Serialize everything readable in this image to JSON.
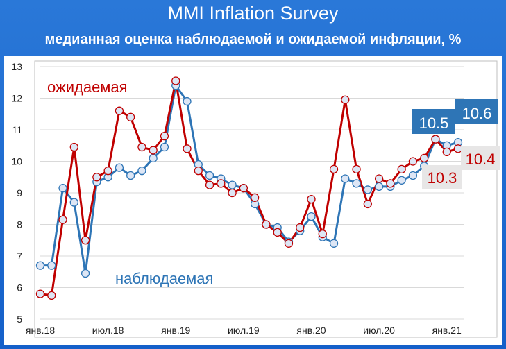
{
  "header": {
    "title": "MMI Inflation Survey",
    "subtitle": "медианная оценка наблюдаемой и ожидаемой инфляции, %"
  },
  "colors": {
    "background": "#1f6fd1",
    "expected": "#c00000",
    "observed": "#2e75b6",
    "marker_fill": "#dde6f5",
    "grid": "#d9d9d9"
  },
  "chart_data": {
    "type": "line",
    "title": "MMI Inflation Survey",
    "subtitle": "медианная оценка наблюдаемой и ожидаемой инфляции, %",
    "xlabel": "",
    "ylabel": "",
    "ylim": [
      5,
      13
    ],
    "yticks": [
      "5",
      "6",
      "7",
      "8",
      "9",
      "10",
      "11",
      "12",
      "13"
    ],
    "xtick_labels": [
      "янв.18",
      "июл.18",
      "янв.19",
      "июл.19",
      "янв.20",
      "июл.20",
      "янв.21"
    ],
    "grid": "horizontal",
    "series": [
      {
        "name": "наблюдаемая",
        "color": "#2e75b6",
        "values": [
          6.7,
          6.7,
          9.15,
          8.7,
          6.45,
          9.35,
          9.5,
          9.8,
          9.55,
          9.7,
          10.1,
          10.45,
          12.4,
          11.9,
          9.9,
          9.55,
          9.45,
          9.25,
          9.15,
          8.65,
          8.0,
          7.9,
          7.45,
          7.8,
          8.25,
          7.6,
          7.4,
          9.45,
          9.3,
          9.1,
          9.2,
          9.2,
          9.4,
          9.55,
          9.85,
          10.7,
          10.5,
          10.6
        ]
      },
      {
        "name": "ожидаемая",
        "color": "#c00000",
        "values": [
          5.8,
          5.75,
          8.15,
          10.45,
          7.5,
          9.5,
          9.7,
          11.6,
          11.4,
          10.45,
          10.35,
          10.8,
          12.55,
          10.4,
          9.7,
          9.25,
          9.3,
          9.0,
          9.15,
          8.85,
          8.0,
          7.75,
          7.4,
          7.9,
          8.8,
          7.7,
          9.75,
          11.95,
          9.75,
          8.65,
          9.45,
          9.3,
          9.75,
          10.0,
          10.1,
          10.7,
          10.3,
          10.4
        ]
      }
    ],
    "annotations": [
      {
        "text": "ожидаемая",
        "series": "ожидаемая"
      },
      {
        "text": "наблюдаемая",
        "series": "наблюдаемая"
      },
      {
        "text": "10.5",
        "series": "наблюдаемая",
        "style": "box-blue"
      },
      {
        "text": "10.6",
        "series": "наблюдаемая",
        "style": "box-blue"
      },
      {
        "text": "10.4",
        "series": "ожидаемая",
        "style": "box-red"
      },
      {
        "text": "10.3",
        "series": "ожидаемая",
        "style": "box-red"
      }
    ]
  }
}
